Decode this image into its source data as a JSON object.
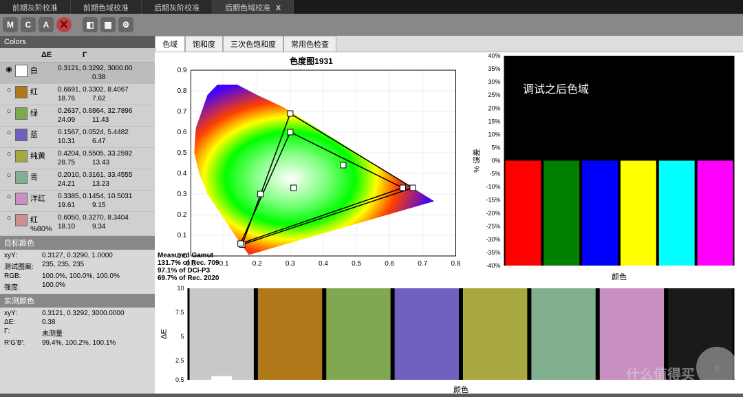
{
  "topTabs": [
    {
      "label": "前期灰阶校准",
      "active": false
    },
    {
      "label": "前期色域校准",
      "active": false
    },
    {
      "label": "后期灰阶校准",
      "active": false
    },
    {
      "label": "后期色域校准",
      "active": true,
      "close": "X"
    }
  ],
  "toolbar": {
    "m": "M",
    "c": "C",
    "a": "A",
    "x": "✕"
  },
  "sidebar": {
    "title": "Colors",
    "headers": {
      "de": "ΔE",
      "g": "Γ"
    },
    "rows": [
      {
        "sel": true,
        "swatch": "#ffffff",
        "name": "白",
        "vals": "0.3121, 0.3292, 3000.00",
        "de": "",
        "g": "0.38"
      },
      {
        "swatch": "#b07818",
        "name": "红",
        "vals": "0.6691, 0.3302, 8.4067",
        "de": "18.76",
        "g": "7.62"
      },
      {
        "swatch": "#80a850",
        "name": "绿",
        "vals": "0.2637, 0.6864, 32.7896",
        "de": "24.09",
        "g": "11.43"
      },
      {
        "swatch": "#7060c0",
        "name": "蓝",
        "vals": "0.1567, 0.0524, 5.4482",
        "de": "10.31",
        "g": "6.47"
      },
      {
        "swatch": "#a8a840",
        "name": "纯黄",
        "vals": "0.4204, 0.5505, 33.2592",
        "de": "28.75",
        "g": "13.43"
      },
      {
        "swatch": "#80b090",
        "name": "青",
        "vals": "0.2010, 0.3161, 33.4555",
        "de": "24.21",
        "g": "13.23"
      },
      {
        "swatch": "#c890c0",
        "name": "洋红",
        "vals": "0.3385, 0.1454, 10.5031",
        "de": "19.61",
        "g": "9.15"
      },
      {
        "swatch": "#c89090",
        "name": "红 %80%",
        "vals": "0.6050, 0.3270, 8.3404",
        "de": "18.10",
        "g": "9.34"
      }
    ],
    "target": {
      "title": "目标颜色",
      "rows": [
        [
          "xyY:",
          "0.3127, 0.3290, 1.0000"
        ],
        [
          "测试图案:",
          "235, 235, 235"
        ],
        [
          "RGB:",
          "100.0%, 100.0%, 100.0%"
        ],
        [
          "强度:",
          "100.0%"
        ]
      ]
    },
    "measured": {
      "title": "实测颜色",
      "rows": [
        [
          "xyY:",
          "0.3121, 0.3292, 3000.0000"
        ],
        [
          "ΔE:",
          "0.38"
        ],
        [
          "Γ:",
          "未测量"
        ],
        [
          "R'G'B':",
          "99.4%, 100.2%, 100.1%"
        ]
      ]
    }
  },
  "subTabs": [
    "色域",
    "饱和度",
    "三次色饱和度",
    "常用色检查"
  ],
  "cie": {
    "title": "色度图1931",
    "xlim": [
      0.0,
      0.8
    ],
    "ylim": [
      0.0,
      0.9
    ],
    "xticks": [
      0.0,
      0.1,
      0.2,
      0.3,
      0.4,
      0.5,
      0.6,
      0.7,
      0.8
    ],
    "yticks": [
      0.0,
      0.1,
      0.2,
      0.3,
      0.4,
      0.5,
      0.6,
      0.7,
      0.8,
      0.9
    ],
    "locus": [
      [
        0.175,
        0.005
      ],
      [
        0.15,
        0.06
      ],
      [
        0.1,
        0.18
      ],
      [
        0.05,
        0.3
      ],
      [
        0.025,
        0.4
      ],
      [
        0.01,
        0.5
      ],
      [
        0.015,
        0.62
      ],
      [
        0.05,
        0.78
      ],
      [
        0.08,
        0.83
      ],
      [
        0.14,
        0.83
      ],
      [
        0.2,
        0.78
      ],
      [
        0.28,
        0.72
      ],
      [
        0.4,
        0.6
      ],
      [
        0.5,
        0.5
      ],
      [
        0.6,
        0.4
      ],
      [
        0.68,
        0.32
      ],
      [
        0.735,
        0.265
      ],
      [
        0.175,
        0.005
      ]
    ],
    "outerTri": [
      [
        0.67,
        0.33
      ],
      [
        0.3,
        0.69
      ],
      [
        0.155,
        0.055
      ]
    ],
    "innerTri": [
      [
        0.64,
        0.33
      ],
      [
        0.3,
        0.6
      ],
      [
        0.15,
        0.06
      ]
    ],
    "markers": [
      [
        0.31,
        0.33
      ],
      [
        0.21,
        0.3
      ],
      [
        0.46,
        0.44
      ]
    ],
    "gamutText": {
      "hdr": "Measured Gamut",
      "lines": [
        "131.7% of Rec. 709",
        "97.1% of DCi-P3",
        "69.7% of Rec. 2020"
      ]
    }
  },
  "barChart": {
    "title": "调试之后色域",
    "bg": "#000000",
    "ylim": [
      -40,
      40
    ],
    "ytick": 5,
    "ylabel": "% 误差",
    "xlabel": "颜色",
    "bars": [
      {
        "color": "#ff0000",
        "val": 0
      },
      {
        "color": "#008000",
        "val": 0
      },
      {
        "color": "#0000ff",
        "val": 0
      },
      {
        "color": "#ffff00",
        "val": 0
      },
      {
        "color": "#00ffff",
        "val": 0
      },
      {
        "color": "#ff00ff",
        "val": 0
      }
    ]
  },
  "bottomChart": {
    "bg": "#000000",
    "ylim": [
      0.5,
      10
    ],
    "yticks": [
      0.5,
      2.5,
      5,
      7.5,
      10
    ],
    "ylabel": "ΔE",
    "xlabel": "颜色",
    "blocks": [
      {
        "color": "#c8c8c8",
        "de": 0.4
      },
      {
        "color": "#b07818",
        "de": 0.5
      },
      {
        "color": "#80a850",
        "de": 0.5
      },
      {
        "color": "#7060c0",
        "de": 0.5
      },
      {
        "color": "#a8a840",
        "de": 0.5
      },
      {
        "color": "#80b090",
        "de": 0.5
      },
      {
        "color": "#c890c0",
        "de": 0.5
      },
      {
        "color": "#1a1a1a",
        "de": 0.5
      }
    ]
  },
  "watermark": {
    "logo": "值",
    "text": "什么值得买"
  }
}
